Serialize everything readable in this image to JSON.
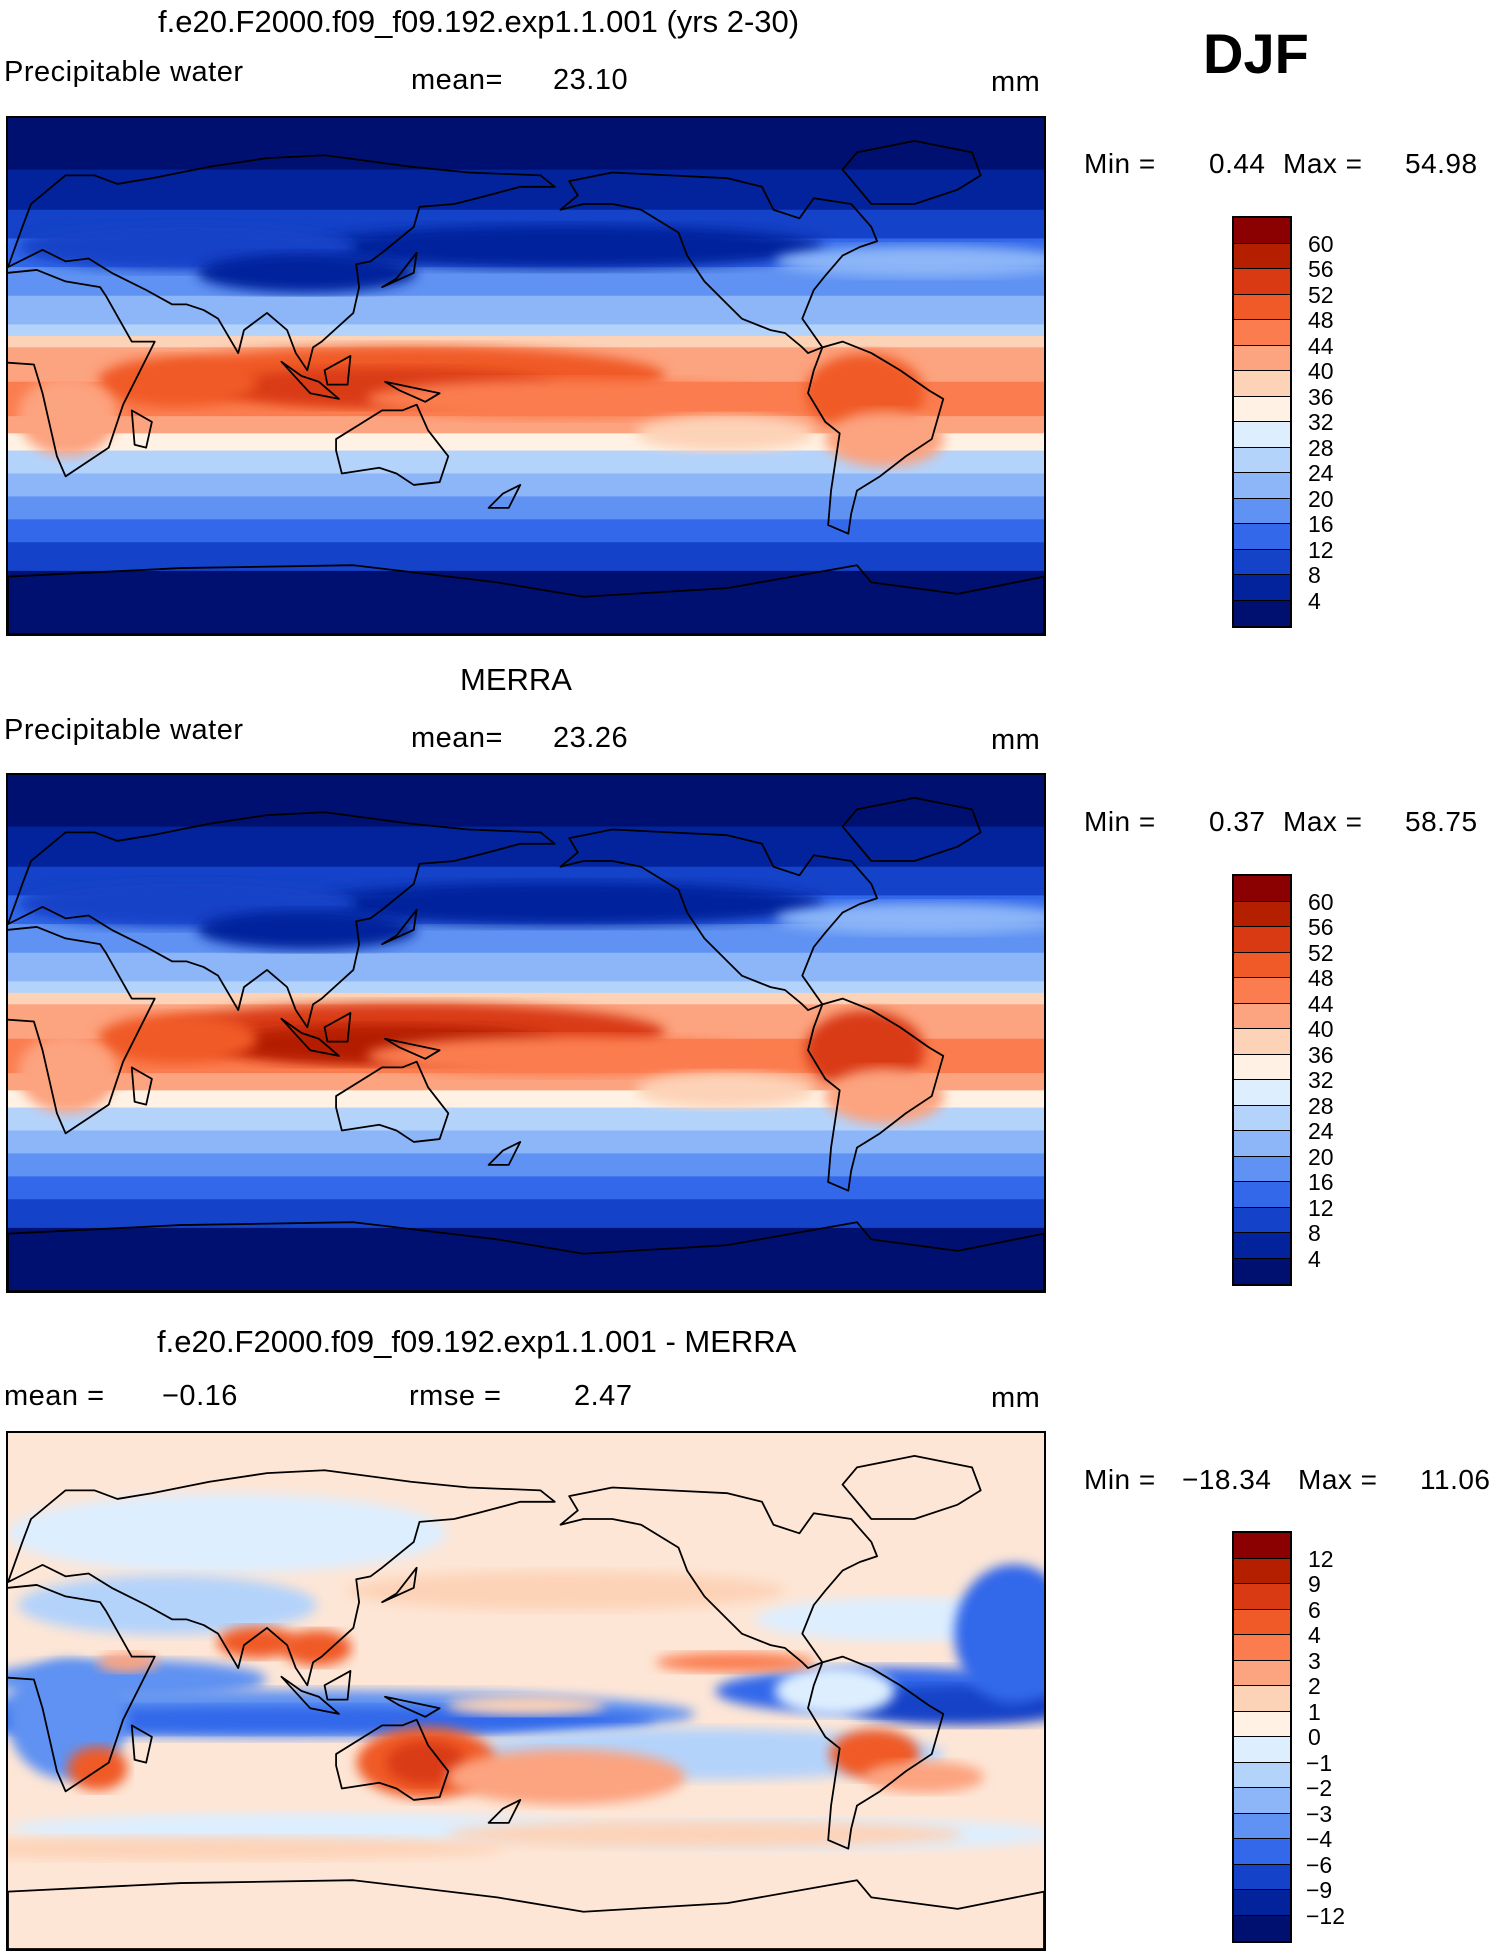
{
  "season": "DJF",
  "panels": [
    {
      "title": "f.e20.F2000.f09_f09.192.exp1.1.001 (yrs 2-30)",
      "left_text": "Precipitable water",
      "mid_label": "mean=",
      "mid_value": "23.10",
      "units": "mm",
      "minmax": {
        "min_label": "Min =",
        "min": "0.44",
        "max_label": "Max =",
        "max": "54.98"
      },
      "scheme": "model"
    },
    {
      "title": "MERRA",
      "left_text": "Precipitable water",
      "mid_label": "mean=",
      "mid_value": "23.26",
      "units": "mm",
      "minmax": {
        "min_label": "Min =",
        "min": "0.37",
        "max_label": "Max =",
        "max": "58.75"
      },
      "scheme": "obs"
    },
    {
      "title": "f.e20.F2000.f09_f09.192.exp1.1.001 - MERRA",
      "left_label": "mean =",
      "left_value": "−0.16",
      "mid_label": "rmse =",
      "mid_value": "2.47",
      "units": "mm",
      "minmax": {
        "min_label": "Min =",
        "min": "−18.34",
        "max_label": "Max =",
        "max": "11.06"
      },
      "scheme": "diff"
    }
  ],
  "colorbars": [
    {
      "labels": [
        "60",
        "56",
        "52",
        "48",
        "44",
        "40",
        "36",
        "32",
        "28",
        "24",
        "20",
        "16",
        "12",
        "8",
        "4"
      ],
      "colors": [
        "#8b0000",
        "#b41f00",
        "#d93a14",
        "#f05a28",
        "#fb7d4f",
        "#fca37f",
        "#fdd3b8",
        "#fff2e4",
        "#ddeeff",
        "#b4d3fb",
        "#8cb6f8",
        "#5f92f2",
        "#3368ea",
        "#1442c8",
        "#02239c",
        "#001070"
      ]
    },
    {
      "labels": [
        "60",
        "56",
        "52",
        "48",
        "44",
        "40",
        "36",
        "32",
        "28",
        "24",
        "20",
        "16",
        "12",
        "8",
        "4"
      ],
      "colors": [
        "#8b0000",
        "#b41f00",
        "#d93a14",
        "#f05a28",
        "#fb7d4f",
        "#fca37f",
        "#fdd3b8",
        "#fff2e4",
        "#ddeeff",
        "#b4d3fb",
        "#8cb6f8",
        "#5f92f2",
        "#3368ea",
        "#1442c8",
        "#02239c",
        "#001070"
      ]
    },
    {
      "labels": [
        "12",
        "9",
        "6",
        "4",
        "3",
        "2",
        "1",
        "0",
        "−1",
        "−2",
        "−3",
        "−4",
        "−6",
        "−9",
        "−12"
      ],
      "colors": [
        "#8b0000",
        "#b41f00",
        "#d93a14",
        "#f05a28",
        "#fb7d4f",
        "#fca37f",
        "#fdd3b8",
        "#fff2e4",
        "#ddeeff",
        "#b4d3fb",
        "#8cb6f8",
        "#5f92f2",
        "#3368ea",
        "#1442c8",
        "#02239c",
        "#001070"
      ]
    }
  ],
  "chart_data": [
    {
      "type": "heatmap",
      "title": "f.e20.F2000.f09_f09.192.exp1.1.001 (yrs 2-30)",
      "field": "Precipitable water",
      "units": "mm",
      "season": "DJF",
      "mean": 23.1,
      "min": 0.44,
      "max": 54.98,
      "contour_levels": [
        4,
        8,
        12,
        16,
        20,
        24,
        28,
        32,
        36,
        40,
        44,
        48,
        52,
        56,
        60
      ]
    },
    {
      "type": "heatmap",
      "title": "MERRA",
      "field": "Precipitable water",
      "units": "mm",
      "season": "DJF",
      "mean": 23.26,
      "min": 0.37,
      "max": 58.75,
      "contour_levels": [
        4,
        8,
        12,
        16,
        20,
        24,
        28,
        32,
        36,
        40,
        44,
        48,
        52,
        56,
        60
      ]
    },
    {
      "type": "heatmap",
      "title": "f.e20.F2000.f09_f09.192.exp1.1.001 - MERRA",
      "units": "mm",
      "season": "DJF",
      "mean": -0.16,
      "rmse": 2.47,
      "min": -18.34,
      "max": 11.06,
      "contour_levels": [
        -12,
        -9,
        -6,
        -4,
        -3,
        -2,
        -1,
        0,
        1,
        2,
        3,
        4,
        6,
        9,
        12
      ]
    }
  ]
}
